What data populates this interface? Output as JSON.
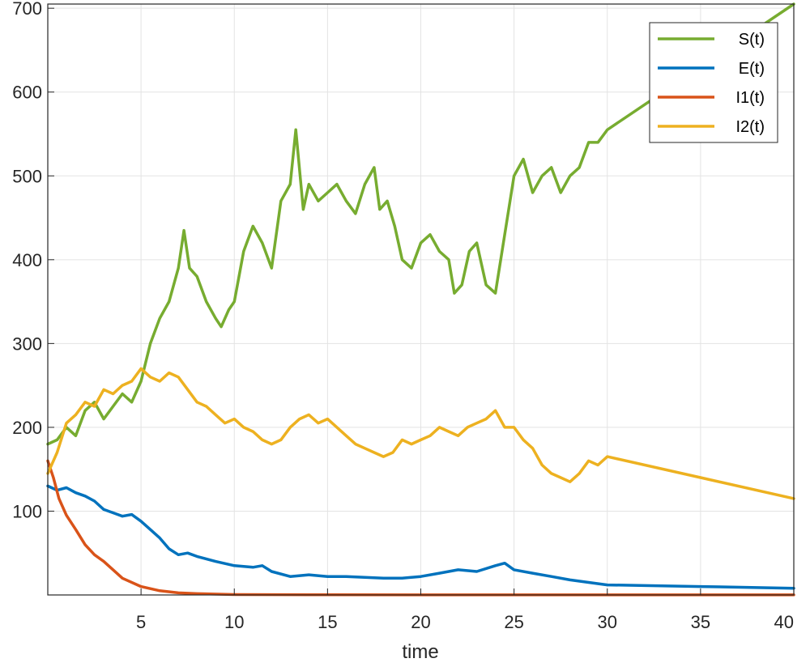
{
  "chart_data": {
    "type": "line",
    "title": "",
    "xlabel": "time",
    "ylabel": "",
    "xlim": [
      0,
      40
    ],
    "ylim": [
      0,
      705
    ],
    "grid": true,
    "legend_position": "top-right",
    "x_ticks": [
      5,
      10,
      15,
      20,
      25,
      30,
      35,
      40
    ],
    "x_tick_labels": [
      "5",
      "10",
      "15",
      "20",
      "25",
      "30",
      "35",
      "40"
    ],
    "y_ticks": [
      100,
      200,
      300,
      400,
      500,
      600,
      700
    ],
    "y_tick_labels": [
      "100",
      "200",
      "300",
      "400",
      "500",
      "600",
      "700"
    ],
    "series": [
      {
        "name": "S(t)",
        "color": "#77AC30",
        "x": [
          0,
          0.5,
          1,
          1.5,
          2,
          2.5,
          3,
          3.5,
          4,
          4.5,
          5,
          5.5,
          6,
          6.5,
          7,
          7.3,
          7.6,
          8,
          8.5,
          9,
          9.3,
          9.7,
          10,
          10.5,
          11,
          11.5,
          12,
          12.5,
          13,
          13.3,
          13.7,
          14,
          14.5,
          15,
          15.5,
          16,
          16.5,
          17,
          17.5,
          17.8,
          18.2,
          18.6,
          19,
          19.5,
          20,
          20.5,
          21,
          21.5,
          21.8,
          22.2,
          22.6,
          23,
          23.5,
          24,
          24.5,
          25,
          25.5,
          26,
          26.5,
          27,
          27.5,
          28,
          28.5,
          29,
          29.5,
          30,
          35,
          40
        ],
        "y": [
          180,
          185,
          200,
          190,
          220,
          230,
          210,
          225,
          240,
          230,
          255,
          300,
          330,
          350,
          390,
          435,
          390,
          380,
          350,
          330,
          320,
          340,
          350,
          410,
          440,
          420,
          390,
          470,
          490,
          555,
          460,
          490,
          470,
          480,
          490,
          470,
          455,
          490,
          510,
          460,
          470,
          440,
          400,
          390,
          420,
          430,
          410,
          400,
          360,
          370,
          410,
          420,
          370,
          360,
          430,
          500,
          520,
          480,
          500,
          510,
          480,
          500,
          510,
          540,
          540,
          555,
          630,
          705
        ]
      },
      {
        "name": "E(t)",
        "color": "#0072BD",
        "x": [
          0,
          0.5,
          1,
          1.5,
          2,
          2.5,
          3,
          3.5,
          4,
          4.5,
          5,
          5.5,
          6,
          6.5,
          7,
          7.5,
          8,
          9,
          10,
          11,
          11.5,
          12,
          13,
          14,
          15,
          16,
          17,
          18,
          19,
          20,
          21,
          22,
          23,
          24,
          24.5,
          25,
          26,
          27,
          28,
          29,
          30,
          35,
          40
        ],
        "y": [
          130,
          125,
          128,
          122,
          118,
          112,
          102,
          98,
          94,
          96,
          88,
          78,
          68,
          55,
          48,
          50,
          46,
          40,
          35,
          33,
          35,
          28,
          22,
          24,
          22,
          22,
          21,
          20,
          20,
          22,
          26,
          30,
          28,
          35,
          38,
          30,
          26,
          22,
          18,
          15,
          12,
          10,
          8
        ]
      },
      {
        "name": "I1(t)",
        "color": "#D95319",
        "x": [
          0,
          0.3,
          0.6,
          1,
          1.5,
          2,
          2.5,
          3,
          3.5,
          4,
          5,
          6,
          7,
          8,
          10,
          15,
          20,
          25,
          30,
          35,
          40
        ],
        "y": [
          160,
          140,
          115,
          95,
          78,
          60,
          48,
          40,
          30,
          20,
          10,
          5,
          2.5,
          1.5,
          0.5,
          0.2,
          0.1,
          0.1,
          0.1,
          0.1,
          0.1
        ]
      },
      {
        "name": "I2(t)",
        "color": "#EDB120",
        "x": [
          0,
          0.5,
          1,
          1.5,
          2,
          2.5,
          3,
          3.5,
          4,
          4.5,
          5,
          5.5,
          6,
          6.5,
          7,
          7.5,
          8,
          8.5,
          9,
          9.5,
          10,
          10.5,
          11,
          11.5,
          12,
          12.5,
          13,
          13.5,
          14,
          14.5,
          15,
          15.5,
          16,
          16.5,
          17,
          17.5,
          18,
          18.5,
          19,
          19.5,
          20,
          20.5,
          21,
          21.5,
          22,
          22.5,
          23,
          23.5,
          24,
          24.5,
          25,
          25.5,
          26,
          26.5,
          27,
          27.5,
          28,
          28.5,
          29,
          29.5,
          30,
          35,
          40
        ],
        "y": [
          145,
          170,
          205,
          215,
          230,
          225,
          245,
          240,
          250,
          255,
          270,
          260,
          255,
          265,
          260,
          245,
          230,
          225,
          215,
          205,
          210,
          200,
          195,
          185,
          180,
          185,
          200,
          210,
          215,
          205,
          210,
          200,
          190,
          180,
          175,
          170,
          165,
          170,
          185,
          180,
          185,
          190,
          200,
          195,
          190,
          200,
          205,
          210,
          220,
          200,
          200,
          185,
          175,
          155,
          145,
          140,
          135,
          145,
          160,
          155,
          165,
          140,
          115
        ]
      }
    ]
  }
}
